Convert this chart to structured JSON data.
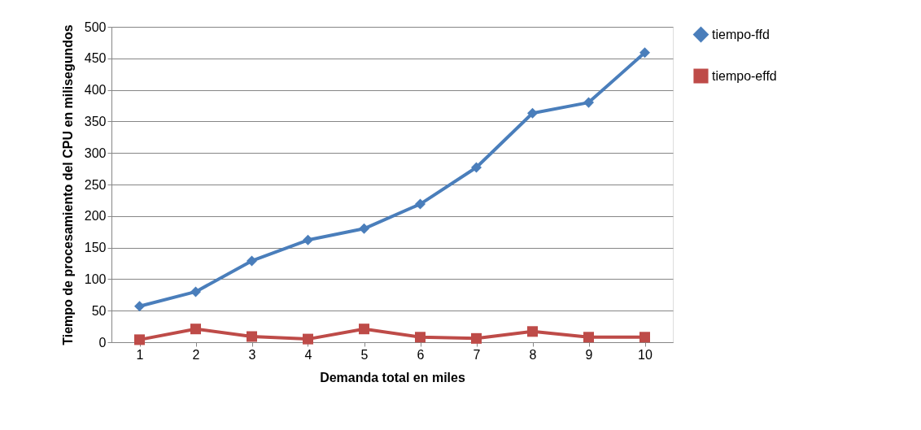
{
  "chart_data": {
    "type": "line",
    "xlabel": "Demanda total en miles",
    "ylabel": "Tiempo de procesamiento del CPU en milisegundos",
    "categories": [
      "1",
      "2",
      "3",
      "4",
      "5",
      "6",
      "7",
      "8",
      "9",
      "10"
    ],
    "series": [
      {
        "name": "tiempo-ffd",
        "color": "#4a7ebb",
        "marker": "diamond",
        "values": [
          57,
          80,
          129,
          162,
          180,
          219,
          277,
          363,
          380,
          459
        ]
      },
      {
        "name": "tiempo-effd",
        "color": "#be4b48",
        "marker": "square",
        "values": [
          4,
          21,
          9,
          5,
          21,
          8,
          6,
          17,
          8,
          8
        ]
      }
    ],
    "ylim": [
      0,
      500
    ],
    "yticks": [
      0,
      50,
      100,
      150,
      200,
      250,
      300,
      350,
      400,
      450,
      500
    ],
    "grid": "y",
    "legend": "right",
    "line_style": "solid"
  }
}
